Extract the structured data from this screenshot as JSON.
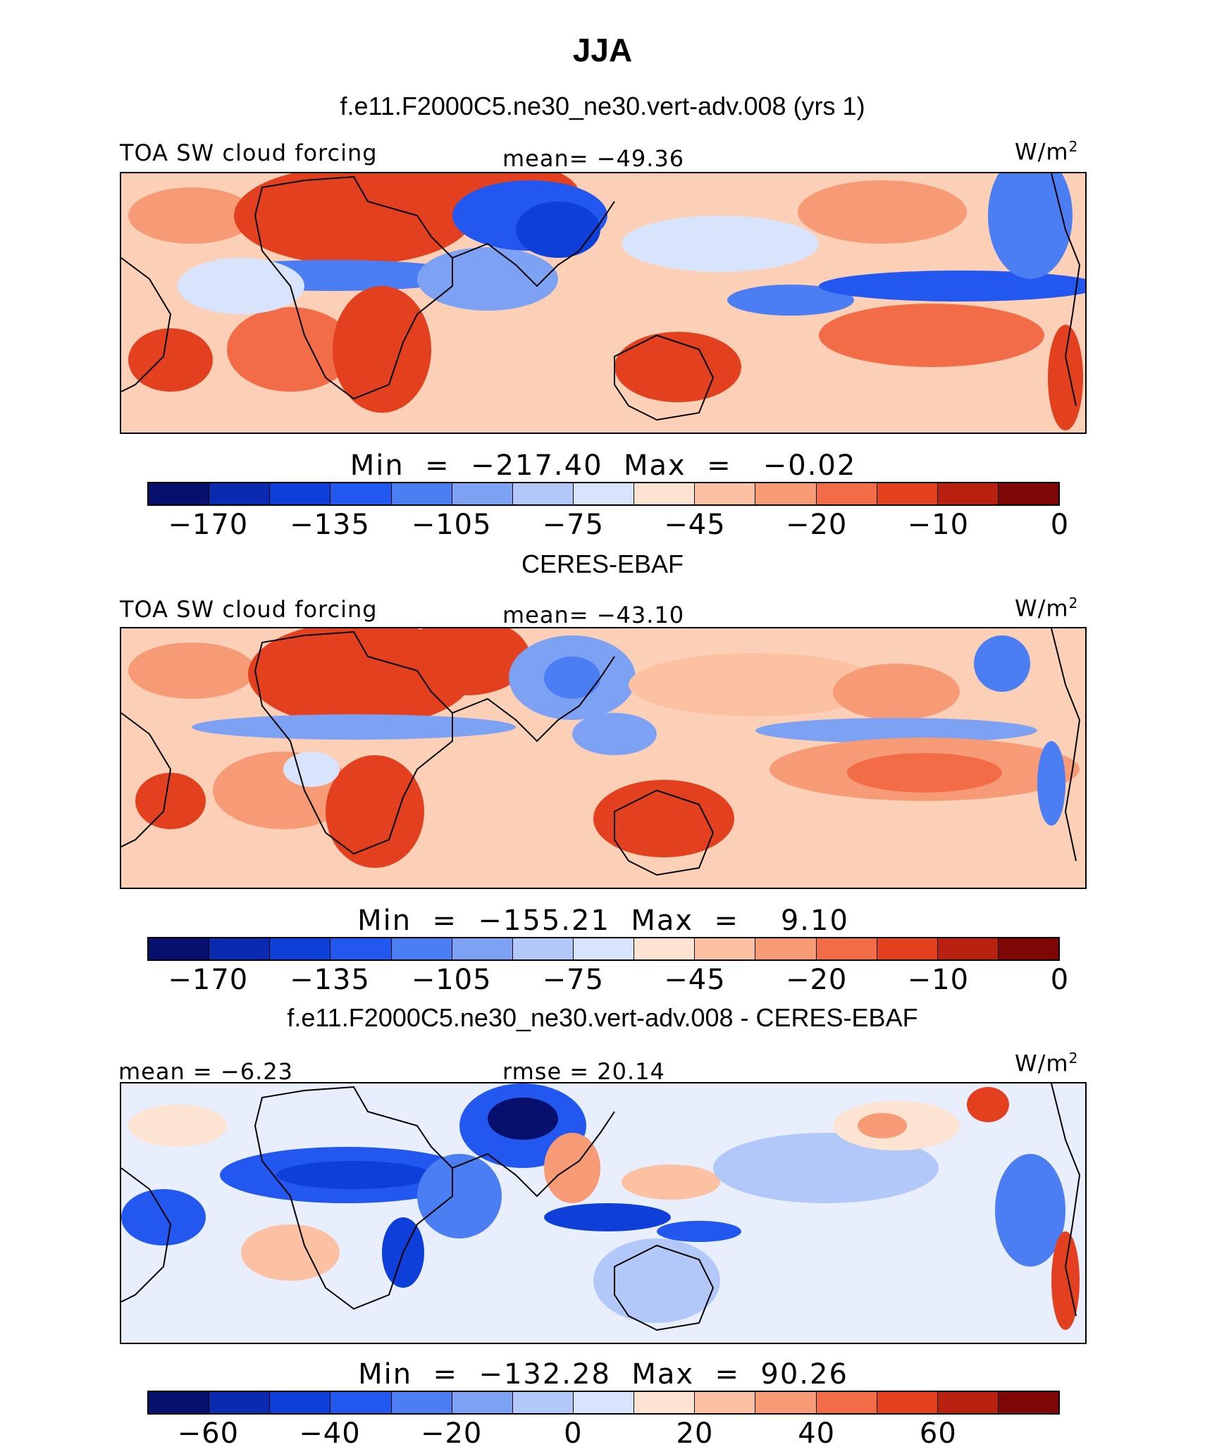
{
  "title": "JJA",
  "panels": [
    {
      "heading": "f.e11.F2000C5.ne30_ne30.vert-adv.008 (yrs 1)",
      "left_label": "TOA SW cloud forcing",
      "center_label": "mean= −49.36",
      "units": "W/m",
      "units_sup": "2",
      "minmax": "Min  =  −217.40  Max  =   −0.02",
      "ticks": [
        "−170",
        "−135",
        "−105",
        "−75",
        "−45",
        "−20",
        "−10",
        "0"
      ],
      "palette": "abs"
    },
    {
      "heading": "CERES-EBAF",
      "left_label": "TOA SW cloud forcing",
      "center_label": "mean= −43.10",
      "units": "W/m",
      "units_sup": "2",
      "minmax": "Min  =  −155.21  Max  =    9.10",
      "ticks": [
        "−170",
        "−135",
        "−105",
        "−75",
        "−45",
        "−20",
        "−10",
        "0"
      ],
      "palette": "abs"
    },
    {
      "heading": "f.e11.F2000C5.ne30_ne30.vert-adv.008 - CERES-EBAF",
      "left_label": "mean =  −6.23",
      "center_label": "rmse =  20.14",
      "units": "W/m",
      "units_sup": "2",
      "minmax": "Min  =  −132.28  Max  =  90.26",
      "ticks": [
        "−60",
        "−40",
        "−20",
        "0",
        "20",
        "40",
        "60"
      ],
      "palette": "diff"
    }
  ],
  "colors": {
    "scale": [
      "#08106e",
      "#0a2ab0",
      "#0e3fd8",
      "#2258f0",
      "#4a7ef2",
      "#7da2f4",
      "#b2c8f8",
      "#d8e4fb",
      "#fde3d1",
      "#fbc1a2",
      "#f79a76",
      "#f26c47",
      "#e2401f",
      "#b8210f",
      "#7e0605"
    ],
    "ocean_base_abs": "#fcd0b6",
    "ocean_base_diff": "#e8eefc",
    "coast": "#000000"
  },
  "chart_data": [
    {
      "type": "heatmap",
      "title": "f.e11.F2000C5.ne30_ne30.vert-adv.008 (yrs 1)",
      "variable": "TOA SW cloud forcing",
      "units": "W/m2",
      "mean": -49.36,
      "min": -217.4,
      "max": -0.02,
      "colorbar_ticks": [
        -170,
        -135,
        -105,
        -75,
        -45,
        -20,
        -10,
        0
      ]
    },
    {
      "type": "heatmap",
      "title": "CERES-EBAF",
      "variable": "TOA SW cloud forcing",
      "units": "W/m2",
      "mean": -43.1,
      "min": -155.21,
      "max": 9.1,
      "colorbar_ticks": [
        -170,
        -135,
        -105,
        -75,
        -45,
        -20,
        -10,
        0
      ]
    },
    {
      "type": "heatmap",
      "title": "f.e11.F2000C5.ne30_ne30.vert-adv.008 - CERES-EBAF",
      "units": "W/m2",
      "mean": -6.23,
      "rmse": 20.14,
      "min": -132.28,
      "max": 90.26,
      "colorbar_ticks": [
        -60,
        -40,
        -20,
        0,
        20,
        40,
        60
      ]
    }
  ]
}
